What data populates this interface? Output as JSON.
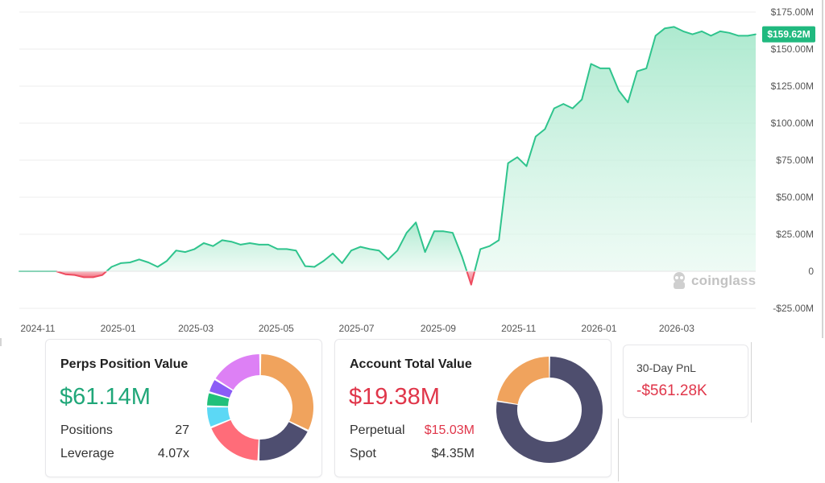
{
  "chart_data": {
    "type": "area",
    "x_tick_labels": [
      "2024-11",
      "2025-01",
      "2025-03",
      "2025-05",
      "2025-07",
      "2025-09",
      "2025-11",
      "2026-01",
      "2026-03"
    ],
    "y_tick_labels": [
      "$175.00M",
      "$150.00M",
      "$125.00M",
      "$100.00M",
      "$75.00M",
      "$50.00M",
      "$25.00M",
      "0",
      "-$25.00M"
    ],
    "y_ticks": [
      175,
      150,
      125,
      100,
      75,
      50,
      25,
      0,
      -25
    ],
    "ylim": [
      -25,
      175
    ],
    "xlim": [
      "2024-10-18",
      "2026-04-30"
    ],
    "y_unit": "$M",
    "last_value_label": "$159.62M",
    "watermark": "coinglass",
    "colors": {
      "positive": "#2fc48d",
      "negative": "#ee4b5f",
      "fill": "#c9f1df",
      "label_bg": "#20b97f"
    },
    "series": [
      {
        "x": [
          "2024-10-18",
          "2024-10-25",
          "2024-11-01",
          "2024-11-08",
          "2024-11-15",
          "2024-11-22",
          "2024-11-29",
          "2024-12-06",
          "2024-12-13",
          "2024-12-20",
          "2024-12-27",
          "2025-01-03",
          "2025-01-10",
          "2025-01-17",
          "2025-01-24",
          "2025-01-31",
          "2025-02-07",
          "2025-02-14",
          "2025-02-21",
          "2025-02-28",
          "2025-03-07",
          "2025-03-14",
          "2025-03-21",
          "2025-03-28",
          "2025-04-04",
          "2025-04-11",
          "2025-04-18",
          "2025-04-25",
          "2025-05-02",
          "2025-05-09",
          "2025-05-16",
          "2025-05-23",
          "2025-05-30",
          "2025-06-06",
          "2025-06-13",
          "2025-06-20",
          "2025-06-27",
          "2025-07-04",
          "2025-07-11",
          "2025-07-18",
          "2025-07-25",
          "2025-08-01",
          "2025-08-08",
          "2025-08-15",
          "2025-08-22",
          "2025-08-29",
          "2025-09-05",
          "2025-09-12",
          "2025-09-19",
          "2025-09-26",
          "2025-10-03",
          "2025-10-10",
          "2025-10-17",
          "2025-10-24",
          "2025-10-31",
          "2025-11-07",
          "2025-11-14",
          "2025-11-21",
          "2025-11-28",
          "2025-12-05",
          "2025-12-12",
          "2025-12-19",
          "2025-12-26",
          "2026-01-02",
          "2026-01-09",
          "2026-01-16",
          "2026-01-23",
          "2026-01-30",
          "2026-02-06",
          "2026-02-13",
          "2026-02-20",
          "2026-02-27",
          "2026-03-06",
          "2026-03-13",
          "2026-03-20",
          "2026-03-27",
          "2026-04-03",
          "2026-04-10",
          "2026-04-17",
          "2026-04-24",
          "2026-04-30"
        ],
        "y": [
          0,
          0,
          0,
          0,
          0,
          -2,
          -2.5,
          -4,
          -4,
          -2.5,
          3,
          5.5,
          6,
          8,
          6,
          3,
          7,
          14,
          13,
          15,
          19,
          17,
          21,
          20,
          18,
          19,
          18,
          18,
          15,
          15,
          14,
          3.5,
          3,
          7,
          12,
          5.5,
          14,
          16.5,
          15,
          14,
          8,
          14,
          26,
          33,
          13,
          27,
          27,
          26,
          10,
          -9,
          15,
          17,
          21,
          73,
          77,
          71,
          91,
          96,
          110,
          113,
          110,
          116,
          140,
          137,
          137,
          122,
          114,
          135,
          137,
          159,
          164,
          165,
          162,
          160,
          162,
          159,
          162,
          161,
          159,
          159,
          160
        ]
      }
    ]
  },
  "cards": {
    "perps": {
      "title": "Perps Position Value",
      "value": "$61.14M",
      "positions_label": "Positions",
      "positions_value": "27",
      "leverage_label": "Leverage",
      "leverage_value": "4.07x",
      "donut": [
        {
          "value": 30,
          "color": "#f0a35d"
        },
        {
          "value": 17,
          "color": "#4e4e70"
        },
        {
          "value": 17,
          "color": "#ff6c79"
        },
        {
          "value": 6,
          "color": "#5cd8f5"
        },
        {
          "value": 4,
          "color": "#21c07a"
        },
        {
          "value": 4,
          "color": "#8b5cf6"
        },
        {
          "value": 15,
          "color": "#dd80f5"
        }
      ]
    },
    "account": {
      "title": "Account Total Value",
      "value": "$19.38M",
      "perpetual_label": "Perpetual",
      "perpetual_value": "$15.03M",
      "spot_label": "Spot",
      "spot_value": "$4.35M",
      "donut": [
        {
          "value": 77.6,
          "color": "#4e4e6e"
        },
        {
          "value": 22.4,
          "color": "#f0a35d"
        }
      ]
    },
    "pnl": {
      "label": "30-Day PnL",
      "value": "-$561.28K"
    }
  }
}
